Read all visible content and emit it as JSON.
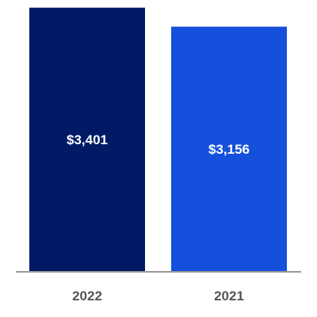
{
  "chart_data": {
    "type": "bar",
    "categories": [
      "2022",
      "2021"
    ],
    "values": [
      3401,
      3156
    ],
    "data_labels": [
      "$3,401",
      "$3,156"
    ],
    "colors": [
      "#001a66",
      "#1550dc"
    ],
    "axis_color": "#9a9a9a",
    "title": "",
    "xlabel": "",
    "ylabel": "",
    "ylim": [
      0,
      3500
    ],
    "grid": false,
    "legend": "none"
  }
}
